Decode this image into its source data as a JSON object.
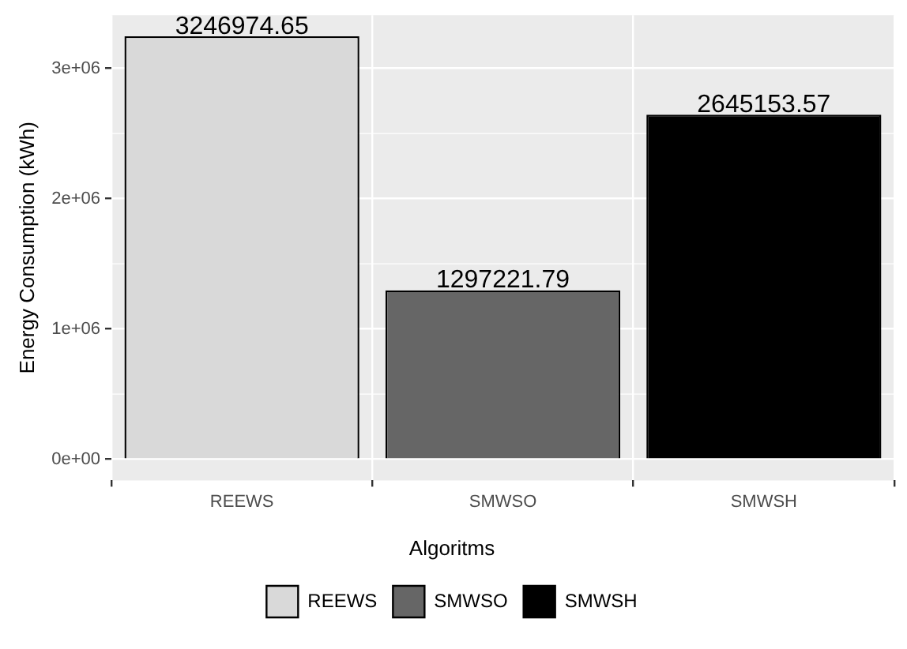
{
  "chart_data": {
    "type": "bar",
    "ylabel": "Energy Consumption (kWh)",
    "legend_title": "Algoritms",
    "categories": [
      "REEWS",
      "SMWSO",
      "SMWSH"
    ],
    "series": [
      {
        "name": "REEWS",
        "color": "#d9d9d9",
        "values": [
          3246974.65,
          null,
          null
        ]
      },
      {
        "name": "SMWSO",
        "color": "#666666",
        "values": [
          null,
          1297221.79,
          null
        ]
      },
      {
        "name": "SMWSH",
        "color": "#000000",
        "values": [
          null,
          null,
          2645153.57
        ]
      }
    ],
    "ylim": [
      -162000,
      3409000
    ],
    "yticks": [
      {
        "value": 0,
        "label": "0e+00"
      },
      {
        "value": 1000000,
        "label": "1e+06"
      },
      {
        "value": 2000000,
        "label": "2e+06"
      },
      {
        "value": 3000000,
        "label": "3e+06"
      }
    ],
    "data_labels": true,
    "grid": true,
    "legend": "bottom"
  }
}
